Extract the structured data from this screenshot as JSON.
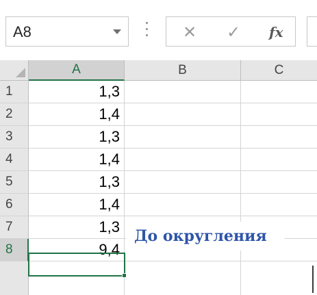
{
  "formula_bar": {
    "name_box": "A8",
    "cancel_icon": "✕",
    "enter_icon": "✓",
    "fx_label": "fx"
  },
  "sheet": {
    "columns": [
      "A",
      "B",
      "C"
    ],
    "selected_column": "A",
    "rows": [
      {
        "num": "1",
        "a": "1,3"
      },
      {
        "num": "2",
        "a": "1,4"
      },
      {
        "num": "3",
        "a": "1,3"
      },
      {
        "num": "4",
        "a": "1,4"
      },
      {
        "num": "5",
        "a": "1,3"
      },
      {
        "num": "6",
        "a": "1,4"
      },
      {
        "num": "7",
        "a": "1,3"
      },
      {
        "num": "8",
        "a": "9,4"
      }
    ],
    "active_cell": "A8"
  },
  "overlay_label": "До округления",
  "colors": {
    "accent": "#217346",
    "overlay_text": "#2e55a8"
  }
}
